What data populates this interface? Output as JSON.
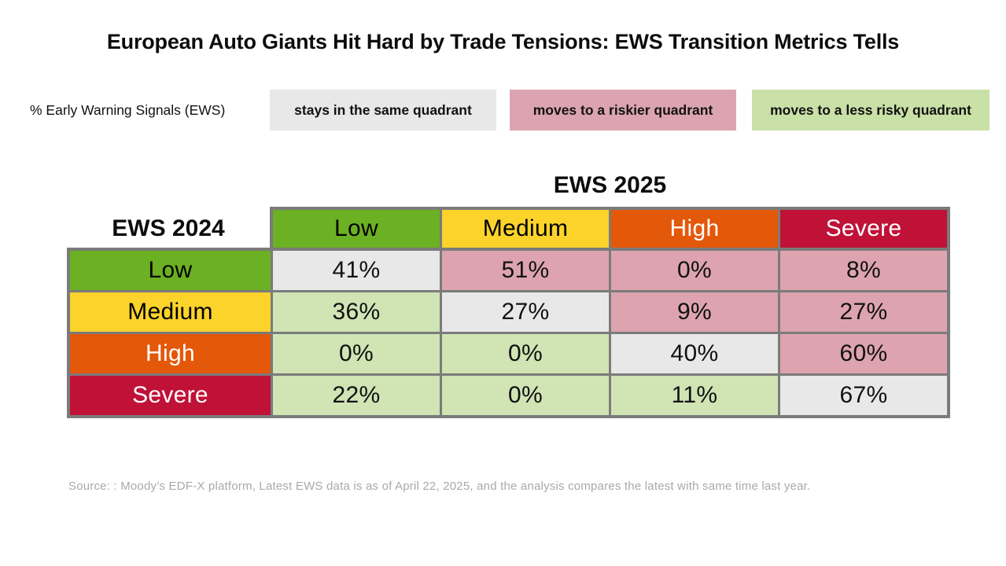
{
  "title": "European Auto Giants Hit Hard by Trade Tensions: EWS Transition Metrics Tells",
  "legend": {
    "label": "% Early Warning Signals (EWS)",
    "items": [
      {
        "label": "stays in the same quadrant",
        "type": "same",
        "color": "#e8e8e8"
      },
      {
        "label": "moves to a riskier quadrant",
        "type": "riskier",
        "color": "#dca4b0"
      },
      {
        "label": "moves to a less risky quadrant",
        "type": "safer",
        "color": "#c9e0a6"
      }
    ]
  },
  "matrix": {
    "col_axis_title": "EWS 2025",
    "row_axis_title": "EWS 2024",
    "border_color": "#7b7b7b",
    "cell_colors": {
      "same": "#e8e8e8",
      "riskier": "#dda4af",
      "safer": "#d0e4b4"
    },
    "columns": [
      {
        "label": "Low",
        "color": "#6cb023",
        "text_color": "#000000"
      },
      {
        "label": "Medium",
        "color": "#fbd32b",
        "text_color": "#000000"
      },
      {
        "label": "High",
        "color": "#e4580a",
        "text_color": "#ffffff"
      },
      {
        "label": "Severe",
        "color": "#c01137",
        "text_color": "#ffffff"
      }
    ],
    "rows": [
      {
        "label": "Low",
        "color": "#6cb023",
        "text_color": "#000000",
        "cells": [
          {
            "value": "41%",
            "type": "same"
          },
          {
            "value": "51%",
            "type": "riskier"
          },
          {
            "value": "0%",
            "type": "riskier"
          },
          {
            "value": "8%",
            "type": "riskier"
          }
        ]
      },
      {
        "label": "Medium",
        "color": "#fbd32b",
        "text_color": "#000000",
        "cells": [
          {
            "value": "36%",
            "type": "safer"
          },
          {
            "value": "27%",
            "type": "same"
          },
          {
            "value": "9%",
            "type": "riskier"
          },
          {
            "value": "27%",
            "type": "riskier"
          }
        ]
      },
      {
        "label": "High",
        "color": "#e4580a",
        "text_color": "#ffffff",
        "cells": [
          {
            "value": "0%",
            "type": "safer"
          },
          {
            "value": "0%",
            "type": "safer"
          },
          {
            "value": "40%",
            "type": "same"
          },
          {
            "value": "60%",
            "type": "riskier"
          }
        ]
      },
      {
        "label": "Severe",
        "color": "#c01137",
        "text_color": "#ffffff",
        "cells": [
          {
            "value": "22%",
            "type": "safer"
          },
          {
            "value": "0%",
            "type": "safer"
          },
          {
            "value": "11%",
            "type": "safer"
          },
          {
            "value": "67%",
            "type": "same"
          }
        ]
      }
    ]
  },
  "source": "Source: : Moody’s EDF-X platform, Latest EWS data is as of April 22, 2025, and the analysis compares the latest with same time last year.",
  "chart_data": {
    "type": "heatmap",
    "title": "European Auto Giants Hit Hard by Trade Tensions: EWS Transition Metrics Tells",
    "x_axis_label": "EWS 2025",
    "y_axis_label": "EWS 2024",
    "unit": "% Early Warning Signals (EWS)",
    "x_categories": [
      "Low",
      "Medium",
      "High",
      "Severe"
    ],
    "y_categories": [
      "Low",
      "Medium",
      "High",
      "Severe"
    ],
    "values_percent": [
      [
        41,
        51,
        0,
        8
      ],
      [
        36,
        27,
        9,
        27
      ],
      [
        0,
        0,
        40,
        60
      ],
      [
        22,
        0,
        11,
        67
      ]
    ],
    "cell_classification": [
      [
        "same",
        "riskier",
        "riskier",
        "riskier"
      ],
      [
        "safer",
        "same",
        "riskier",
        "riskier"
      ],
      [
        "safer",
        "safer",
        "same",
        "riskier"
      ],
      [
        "safer",
        "safer",
        "safer",
        "same"
      ]
    ],
    "legend_entries": [
      "stays in the same quadrant",
      "moves to a riskier quadrant",
      "moves to a less risky quadrant"
    ],
    "legend_position": "top"
  }
}
